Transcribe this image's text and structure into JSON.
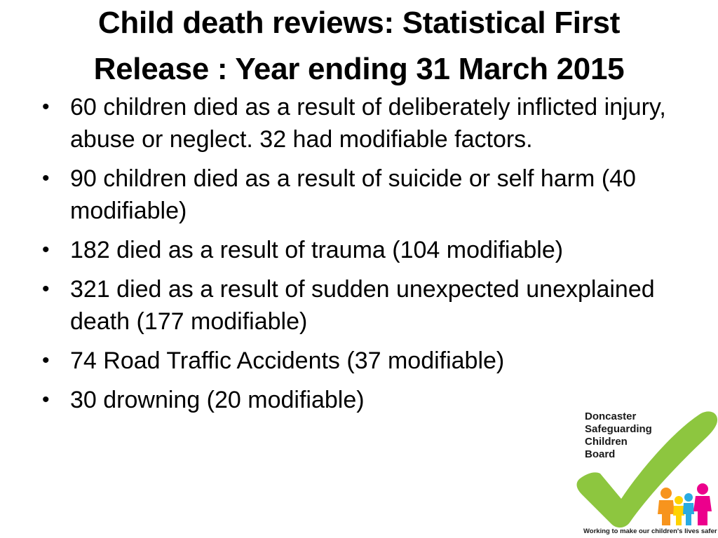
{
  "title": {
    "line1": "Child death reviews: Statistical First",
    "line2": "Release : Year ending 31 March 2015"
  },
  "bullet_glyph": "•",
  "bullets": [
    {
      "text": "60 children died as a result of deliberately inflicted injury, abuse or neglect. 32 had modifiable factors."
    },
    {
      "text": "90 children died as a result of suicide or self harm (40 modifiable)"
    },
    {
      "text": "182 died as a result of trauma (104 modifiable)"
    },
    {
      "text": "321 died as a result of sudden unexpected unexplained death (177 modifiable)"
    },
    {
      "text": "74 Road Traffic Accidents (37 modifiable)"
    },
    {
      "text": "30 drowning (20 modifiable)"
    }
  ],
  "logo": {
    "name": "Doncaster\nSafeguarding\nChildren\nBoard",
    "tagline": "Working to make our children's lives safer",
    "colors": {
      "tick": "#8dc63f",
      "figure_orange": "#f7941d",
      "figure_yellow": "#ffd200",
      "figure_blue": "#29abe2",
      "figure_pink": "#ec008c"
    }
  }
}
